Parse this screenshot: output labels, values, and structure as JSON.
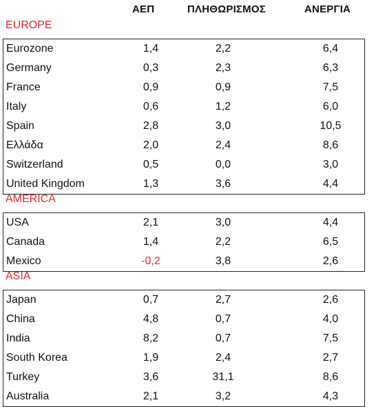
{
  "headers": {
    "gdp": "ΑΕΠ",
    "inflation": "ΠΛΗΘΩΡΙΣΜΟΣ",
    "unemployment": "ΑΝΕΡΓΙΑ"
  },
  "sections": [
    {
      "title": "EUROPE",
      "rows": [
        {
          "country": "Eurozone",
          "gdp": "1,4",
          "inflation": "2,2",
          "unemployment": "6,4"
        },
        {
          "country": "Germany",
          "gdp": "0,3",
          "inflation": "2,3",
          "unemployment": "6,3"
        },
        {
          "country": "France",
          "gdp": "0,9",
          "inflation": "0,9",
          "unemployment": "7,5"
        },
        {
          "country": "Italy",
          "gdp": "0,6",
          "inflation": "1,2",
          "unemployment": "6,0"
        },
        {
          "country": "Spain",
          "gdp": "2,8",
          "inflation": "3,0",
          "unemployment": "10,5"
        },
        {
          "country": "Ελλάδα",
          "gdp": "2,0",
          "inflation": "2,4",
          "unemployment": "8,6"
        },
        {
          "country": "Switzerland",
          "gdp": "0,5",
          "inflation": "0,0",
          "unemployment": "3,0"
        },
        {
          "country": "United Kingdom",
          "gdp": "1,3",
          "inflation": "3,6",
          "unemployment": "4,4"
        }
      ]
    },
    {
      "title": "AMERICA",
      "rows": [
        {
          "country": "USA",
          "gdp": "2,1",
          "inflation": "3,0",
          "unemployment": "4,4"
        },
        {
          "country": "Canada",
          "gdp": "1,4",
          "inflation": "2,2",
          "unemployment": "6,5"
        },
        {
          "country": "Mexico",
          "gdp": "-0,2",
          "inflation": "3,8",
          "unemployment": "2,6"
        }
      ]
    },
    {
      "title": "ASIA",
      "rows": [
        {
          "country": "Japan",
          "gdp": "0,7",
          "inflation": "2,7",
          "unemployment": "2,6"
        },
        {
          "country": "China",
          "gdp": "4,8",
          "inflation": "0,7",
          "unemployment": "4,0"
        },
        {
          "country": "India",
          "gdp": "8,2",
          "inflation": "0,7",
          "unemployment": "7,5"
        },
        {
          "country": "South Korea",
          "gdp": "1,9",
          "inflation": "2,4",
          "unemployment": "2,7"
        },
        {
          "country": "Turkey",
          "gdp": "3,6",
          "inflation": "31,1",
          "unemployment": "8,6"
        },
        {
          "country": "Australia",
          "gdp": "2,1",
          "inflation": "3,2",
          "unemployment": "4,3"
        }
      ]
    }
  ],
  "colors": {
    "section_title": "#e8262c",
    "negative_value": "#e8262c",
    "text": "#111111",
    "border": "#222222"
  }
}
